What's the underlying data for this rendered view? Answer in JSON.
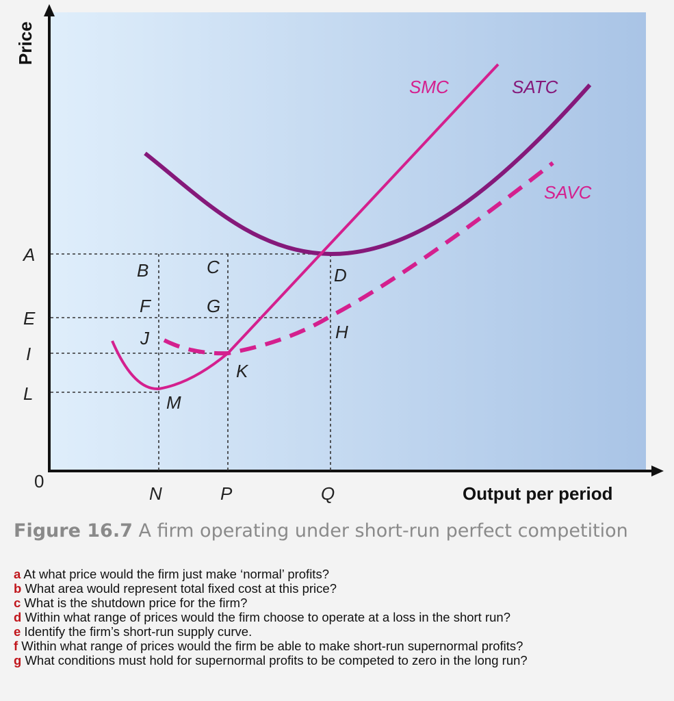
{
  "axes": {
    "y_title": "Price",
    "x_title": "Output per period",
    "origin": "0",
    "price_labels": [
      "A",
      "E",
      "I",
      "L"
    ],
    "output_labels": [
      "N",
      "P",
      "Q"
    ]
  },
  "curves": {
    "smc": {
      "label": "SMC",
      "color": "#d4208e"
    },
    "satc": {
      "label": "SATC",
      "color": "#85197a"
    },
    "savc": {
      "label": "SAVC",
      "color": "#d4208e"
    }
  },
  "points": {
    "B": "B",
    "C": "C",
    "D": "D",
    "F": "F",
    "G": "G",
    "H": "H",
    "J": "J",
    "K": "K",
    "M": "M"
  },
  "colors": {
    "bg_left": "#dfeefb",
    "bg_right": "#a9c4e6",
    "question_letter": "#c0151b"
  },
  "caption": {
    "figure": "Figure 16.7",
    "text": " A firm operating under short-run perfect competition"
  },
  "questions": [
    {
      "letter": "a",
      "text": " At what price would the firm just make ‘normal’ profits?"
    },
    {
      "letter": "b",
      "text": " What area would represent total fixed cost at this price?"
    },
    {
      "letter": "c",
      "text": " What is the shutdown price for the firm?"
    },
    {
      "letter": "d",
      "text": " Within what range of prices would the firm choose to operate at a loss in the short run?"
    },
    {
      "letter": "e",
      "text": " Identify the firm’s short-run supply curve."
    },
    {
      "letter": "f",
      "text": " Within what range of prices would the firm be able to make short-run supernormal profits?"
    },
    {
      "letter": "g",
      "text": " What conditions must hold for supernormal profits to be competed to zero in the long run?"
    }
  ]
}
